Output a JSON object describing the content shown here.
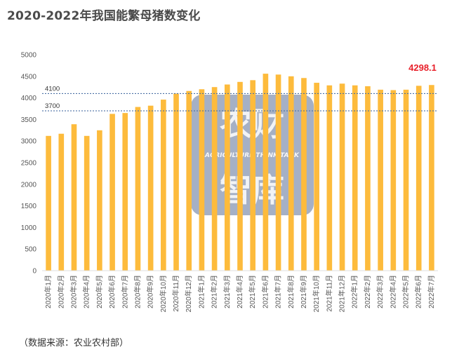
{
  "title": "2020-2022年我国能繁母猪数变化",
  "source": "（数据来源：农业农村部）",
  "watermark": {
    "top": "农财",
    "middle": "AGRICULTURE THINK TANK",
    "bottom": "智库"
  },
  "colors": {
    "bar": "#FDBB3C",
    "refline": "#4a6fa5",
    "highlight": "#e8202a",
    "watermark": "#5b6f95"
  },
  "chart_data": {
    "type": "bar",
    "categories": [
      "2020年1月",
      "2020年2月",
      "2020年3月",
      "2020年4月",
      "2020年5月",
      "2020年6月",
      "2020年7月",
      "2020年8月",
      "2020年9月",
      "2020年10月",
      "2020年11月",
      "2020年12月",
      "2021年1月",
      "2021年2月",
      "2021年3月",
      "2021年4月",
      "2021年5月",
      "2021年6月",
      "2021年7月",
      "2021年8月",
      "2021年9月",
      "2021年10月",
      "2021年11月",
      "2021年12月",
      "2022年1月",
      "2022年2月",
      "2022年3月",
      "2022年4月",
      "2022年5月",
      "2022年6月",
      "2022年7月"
    ],
    "values": [
      3120,
      3170,
      3390,
      3120,
      3250,
      3630,
      3650,
      3790,
      3820,
      3960,
      4100,
      4160,
      4200,
      4250,
      4310,
      4370,
      4410,
      4560,
      4540,
      4500,
      4460,
      4350,
      4290,
      4330,
      4290,
      4270,
      4190,
      4180,
      4190,
      4280,
      4298.1
    ],
    "ylim": [
      0,
      5000
    ],
    "yticks": [
      0,
      500,
      1000,
      1500,
      2000,
      2500,
      3000,
      3500,
      4000,
      4500,
      5000
    ],
    "reference_lines": [
      {
        "value": 4100,
        "label": "4100"
      },
      {
        "value": 3700,
        "label": "3700"
      }
    ],
    "highlight_label": {
      "index": 30,
      "text": "4298.1"
    },
    "grid": false
  }
}
